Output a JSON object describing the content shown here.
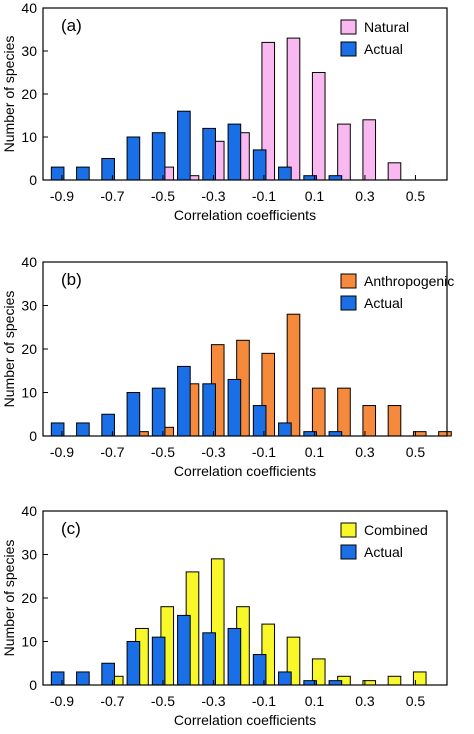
{
  "chart_data": [
    {
      "type": "bar",
      "panel_label": "(a)",
      "xlabel": "Correlation coefficients",
      "ylabel": "Number of species",
      "xlim": [
        -0.975,
        0.625
      ],
      "ylim": [
        0,
        40
      ],
      "yticks": [
        0,
        10,
        20,
        30,
        40
      ],
      "xticks": [
        -0.9,
        -0.7,
        -0.5,
        -0.3,
        -0.1,
        0.1,
        0.3,
        0.5
      ],
      "xtick_labels": [
        "-0.9",
        "-0.7",
        "-0.5",
        "-0.3",
        "-0.1",
        "0.1",
        "0.3",
        "0.5"
      ],
      "legend": "top-right",
      "x": [
        -0.9,
        -0.8,
        -0.7,
        -0.6,
        -0.5,
        -0.4,
        -0.3,
        -0.2,
        -0.1,
        0.0,
        0.1,
        0.2,
        0.3,
        0.4,
        0.5,
        0.6
      ],
      "series": [
        {
          "name": "Natural",
          "color": "#f9b8f0",
          "values": [
            0,
            0,
            0,
            0,
            3,
            1,
            9,
            11,
            32,
            33,
            25,
            13,
            14,
            4,
            0,
            0
          ]
        },
        {
          "name": "Actual",
          "color": "#1a6ee6",
          "values": [
            3,
            3,
            5,
            10,
            11,
            16,
            12,
            13,
            7,
            3,
            1,
            1,
            0,
            0,
            0,
            0
          ]
        }
      ]
    },
    {
      "type": "bar",
      "panel_label": "(b)",
      "xlabel": "Correlation coefficients",
      "ylabel": "Number of species",
      "xlim": [
        -0.975,
        0.625
      ],
      "ylim": [
        0,
        40
      ],
      "yticks": [
        0,
        10,
        20,
        30,
        40
      ],
      "xticks": [
        -0.9,
        -0.7,
        -0.5,
        -0.3,
        -0.1,
        0.1,
        0.3,
        0.5
      ],
      "xtick_labels": [
        "-0.9",
        "-0.7",
        "-0.5",
        "-0.3",
        "-0.1",
        "0.1",
        "0.3",
        "0.5"
      ],
      "legend": "top-right",
      "x": [
        -0.9,
        -0.8,
        -0.7,
        -0.6,
        -0.5,
        -0.4,
        -0.3,
        -0.2,
        -0.1,
        0.0,
        0.1,
        0.2,
        0.3,
        0.4,
        0.5,
        0.6
      ],
      "series": [
        {
          "name": "Anthropogenic",
          "color": "#f58a3c",
          "values": [
            0,
            0,
            0,
            1,
            2,
            12,
            21,
            22,
            19,
            28,
            11,
            11,
            7,
            7,
            1,
            1
          ]
        },
        {
          "name": "Actual",
          "color": "#1a6ee6",
          "values": [
            3,
            3,
            5,
            10,
            11,
            16,
            12,
            13,
            7,
            3,
            1,
            1,
            0,
            0,
            0,
            0
          ]
        }
      ]
    },
    {
      "type": "bar",
      "panel_label": "(c)",
      "xlabel": "Correlation coefficients",
      "ylabel": "Number of species",
      "xlim": [
        -0.975,
        0.625
      ],
      "ylim": [
        0,
        40
      ],
      "yticks": [
        0,
        10,
        20,
        30,
        40
      ],
      "xticks": [
        -0.9,
        -0.7,
        -0.5,
        -0.3,
        -0.1,
        0.1,
        0.3,
        0.5
      ],
      "xtick_labels": [
        "-0.9",
        "-0.7",
        "-0.5",
        "-0.3",
        "-0.1",
        "0.1",
        "0.3",
        "0.5"
      ],
      "legend": "top-right",
      "x": [
        -0.9,
        -0.8,
        -0.7,
        -0.6,
        -0.5,
        -0.4,
        -0.3,
        -0.2,
        -0.1,
        0.0,
        0.1,
        0.2,
        0.3,
        0.4,
        0.5,
        0.6
      ],
      "series": [
        {
          "name": "Combined",
          "color": "#f7f72a",
          "values": [
            0,
            0,
            2,
            13,
            18,
            26,
            29,
            18,
            14,
            11,
            6,
            2,
            1,
            2,
            3,
            0
          ]
        },
        {
          "name": "Actual",
          "color": "#1a6ee6",
          "values": [
            3,
            3,
            5,
            10,
            11,
            16,
            12,
            13,
            7,
            3,
            1,
            1,
            0,
            0,
            0,
            0
          ]
        }
      ]
    }
  ]
}
